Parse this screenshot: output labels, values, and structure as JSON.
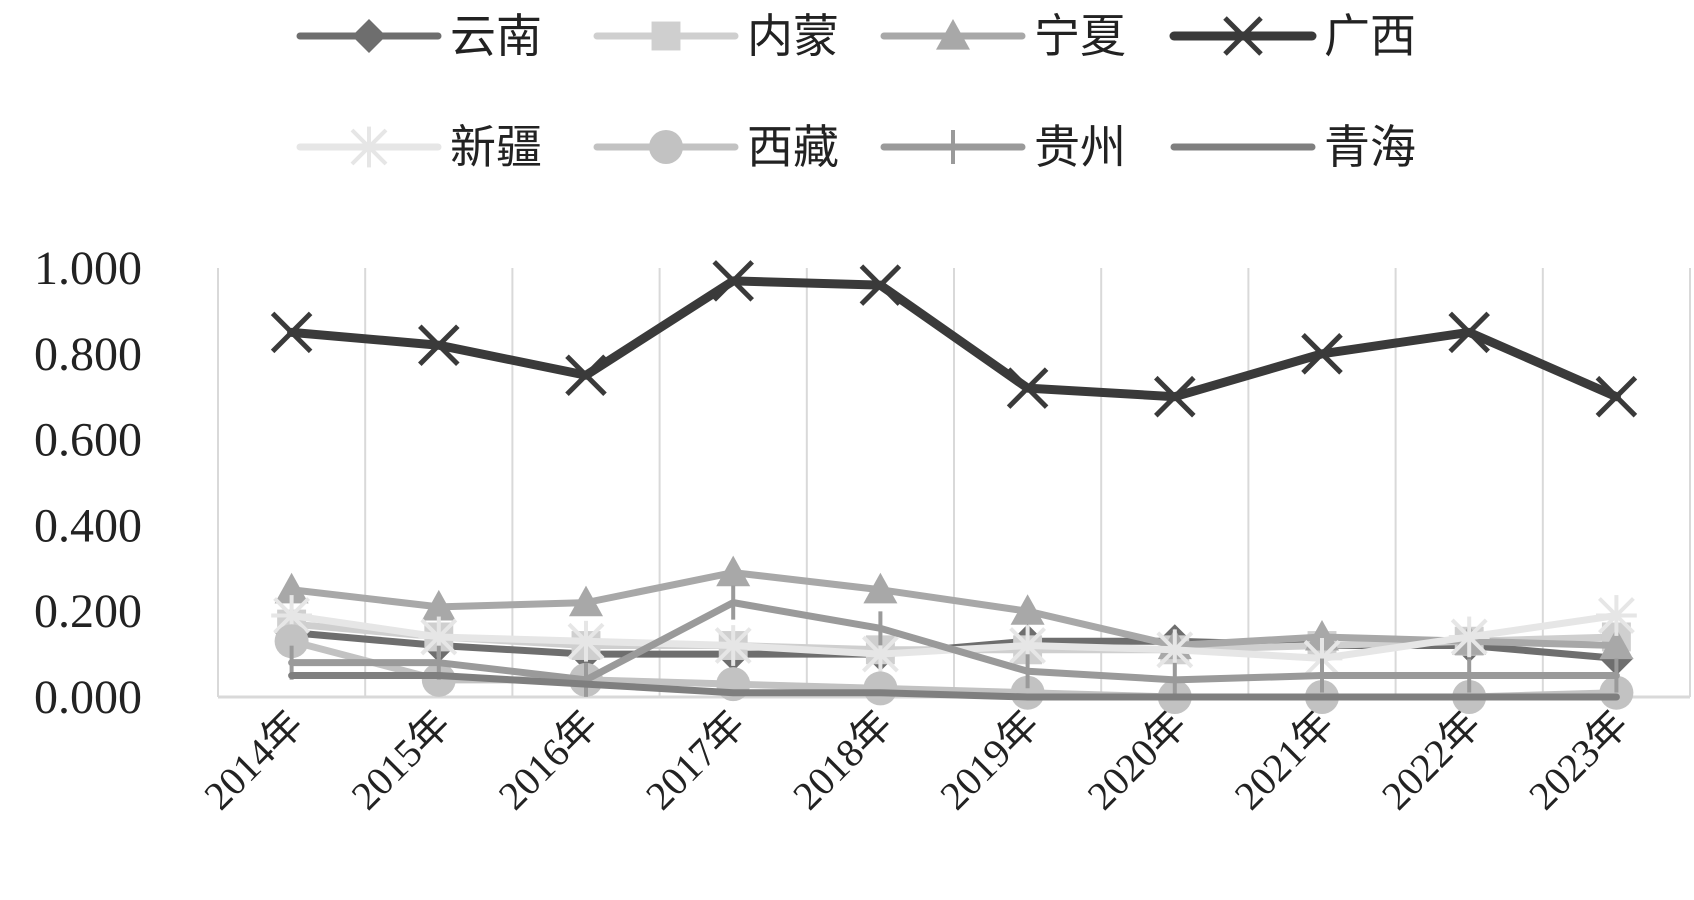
{
  "chart_data": {
    "type": "line",
    "categories": [
      "2014年",
      "2015年",
      "2016年",
      "2017年",
      "2018年",
      "2019年",
      "2020年",
      "2021年",
      "2022年",
      "2023年"
    ],
    "ylim": [
      0,
      1
    ],
    "yticks": [
      "0.000",
      "0.200",
      "0.400",
      "0.600",
      "0.800",
      "1.000"
    ],
    "grid": "vertical",
    "legend_position": "top",
    "series": [
      {
        "name": "云南",
        "color": "#6e6e6e",
        "marker": "diamond",
        "width": 7,
        "values": [
          0.15,
          0.12,
          0.1,
          0.1,
          0.1,
          0.13,
          0.13,
          0.12,
          0.12,
          0.09
        ]
      },
      {
        "name": "内蒙",
        "color": "#cfcfcf",
        "marker": "square",
        "width": 7,
        "values": [
          0.17,
          0.14,
          0.12,
          0.12,
          0.11,
          0.11,
          0.11,
          0.12,
          0.13,
          0.14
        ]
      },
      {
        "name": "宁夏",
        "color": "#a8a8a8",
        "marker": "triangle",
        "width": 7,
        "values": [
          0.25,
          0.21,
          0.22,
          0.29,
          0.25,
          0.2,
          0.12,
          0.14,
          0.13,
          0.12
        ]
      },
      {
        "name": "广西",
        "color": "#3a3a3a",
        "marker": "x",
        "width": 9,
        "values": [
          0.85,
          0.82,
          0.75,
          0.97,
          0.96,
          0.72,
          0.7,
          0.8,
          0.85,
          0.7
        ]
      },
      {
        "name": "新疆",
        "color": "#e6e6e6",
        "marker": "asterisk",
        "width": 7,
        "values": [
          0.19,
          0.14,
          0.13,
          0.12,
          0.1,
          0.12,
          0.11,
          0.09,
          0.14,
          0.19
        ]
      },
      {
        "name": "西藏",
        "color": "#c2c2c2",
        "marker": "circle",
        "width": 7,
        "values": [
          0.13,
          0.04,
          0.04,
          0.03,
          0.02,
          0.01,
          0.0,
          0.0,
          0.0,
          0.01
        ]
      },
      {
        "name": "贵州",
        "color": "#9a9a9a",
        "marker": "plus",
        "width": 7,
        "values": [
          0.08,
          0.08,
          0.04,
          0.22,
          0.16,
          0.06,
          0.04,
          0.05,
          0.05,
          0.05
        ]
      },
      {
        "name": "青海",
        "color": "#7f7f7f",
        "marker": "none",
        "width": 7,
        "values": [
          0.05,
          0.05,
          0.03,
          0.01,
          0.01,
          0.0,
          0.0,
          0.0,
          0.0,
          0.0
        ]
      }
    ]
  }
}
